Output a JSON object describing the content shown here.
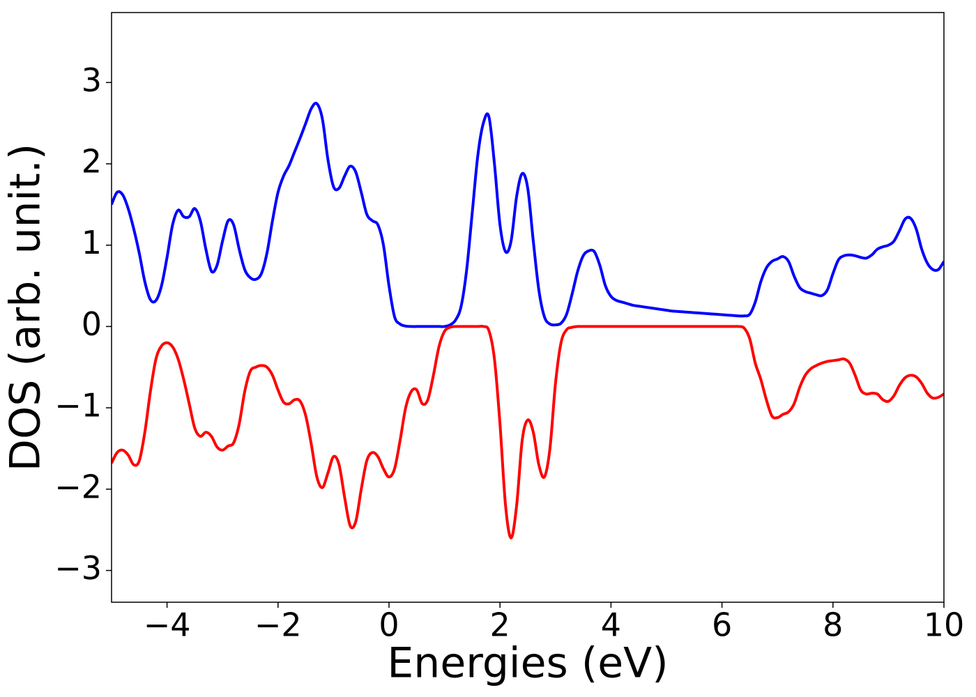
{
  "chart_data": {
    "type": "line",
    "xlabel": "Energies (eV)",
    "ylabel": "DOS (arb. unit.)",
    "x": [
      -5,
      -4.9,
      -4.8,
      -4.7,
      -4.6,
      -4.5,
      -4.4,
      -4.3,
      -4.2,
      -4.1,
      -4,
      -3.9,
      -3.8,
      -3.7,
      -3.6,
      -3.5,
      -3.4,
      -3.3,
      -3.2,
      -3.1,
      -3,
      -2.9,
      -2.8,
      -2.7,
      -2.6,
      -2.5,
      -2.4,
      -2.3,
      -2.2,
      -2.1,
      -2,
      -1.9,
      -1.8,
      -1.7,
      -1.6,
      -1.5,
      -1.4,
      -1.3,
      -1.2,
      -1.1,
      -1,
      -0.9,
      -0.8,
      -0.7,
      -0.6,
      -0.5,
      -0.4,
      -0.3,
      -0.2,
      -0.1,
      0,
      0.1,
      0.2,
      0.3,
      0.4,
      0.5,
      0.6,
      0.7,
      0.8,
      0.9,
      1,
      1.1,
      1.2,
      1.3,
      1.4,
      1.5,
      1.6,
      1.7,
      1.8,
      1.9,
      2,
      2.1,
      2.2,
      2.3,
      2.4,
      2.5,
      2.6,
      2.7,
      2.8,
      2.9,
      3,
      3.1,
      3.2,
      3.3,
      3.4,
      3.5,
      3.6,
      3.7,
      3.8,
      3.9,
      4,
      4.1,
      4.2,
      4.3,
      4.4,
      4.5,
      4.6,
      4.7,
      4.8,
      4.9,
      5,
      5.1,
      5.2,
      5.3,
      5.4,
      5.5,
      5.6,
      5.7,
      5.8,
      5.9,
      6,
      6.1,
      6.2,
      6.3,
      6.4,
      6.5,
      6.6,
      6.7,
      6.8,
      6.9,
      7,
      7.1,
      7.2,
      7.3,
      7.4,
      7.5,
      7.6,
      7.7,
      7.8,
      7.9,
      8,
      8.1,
      8.2,
      8.3,
      8.4,
      8.5,
      8.6,
      8.7,
      8.8,
      8.9,
      9,
      9.1,
      9.2,
      9.3,
      9.4,
      9.5,
      9.6,
      9.7,
      9.8,
      9.9,
      10
    ],
    "series": [
      {
        "color": "#0000ff",
        "values": [
          1.5,
          1.65,
          1.62,
          1.45,
          1.2,
          0.9,
          0.55,
          0.33,
          0.32,
          0.5,
          0.85,
          1.25,
          1.43,
          1.35,
          1.35,
          1.45,
          1.3,
          0.95,
          0.68,
          0.75,
          1.05,
          1.3,
          1.25,
          0.95,
          0.7,
          0.6,
          0.58,
          0.65,
          0.9,
          1.3,
          1.65,
          1.85,
          1.98,
          2.15,
          2.32,
          2.5,
          2.68,
          2.74,
          2.55,
          2.05,
          1.72,
          1.7,
          1.85,
          1.97,
          1.9,
          1.65,
          1.38,
          1.3,
          1.25,
          1.0,
          0.5,
          0.12,
          0.03,
          0.005,
          0,
          0,
          0,
          0,
          0,
          0,
          0,
          0.02,
          0.08,
          0.25,
          0.7,
          1.4,
          2.1,
          2.5,
          2.58,
          2.0,
          1.25,
          0.92,
          1.05,
          1.6,
          1.88,
          1.7,
          1.05,
          0.45,
          0.12,
          0.03,
          0.02,
          0.04,
          0.15,
          0.4,
          0.68,
          0.87,
          0.93,
          0.92,
          0.75,
          0.5,
          0.37,
          0.32,
          0.3,
          0.28,
          0.26,
          0.25,
          0.24,
          0.23,
          0.22,
          0.21,
          0.2,
          0.19,
          0.185,
          0.18,
          0.175,
          0.17,
          0.165,
          0.16,
          0.155,
          0.15,
          0.145,
          0.14,
          0.135,
          0.13,
          0.13,
          0.15,
          0.3,
          0.55,
          0.72,
          0.8,
          0.83,
          0.86,
          0.8,
          0.62,
          0.48,
          0.43,
          0.41,
          0.39,
          0.38,
          0.45,
          0.65,
          0.82,
          0.87,
          0.88,
          0.87,
          0.85,
          0.84,
          0.88,
          0.95,
          0.98,
          1.0,
          1.05,
          1.18,
          1.32,
          1.33,
          1.2,
          0.95,
          0.78,
          0.7,
          0.7,
          0.8
        ]
      },
      {
        "color": "#ff0000",
        "values": [
          -1.68,
          -1.55,
          -1.52,
          -1.58,
          -1.7,
          -1.65,
          -1.3,
          -0.8,
          -0.4,
          -0.24,
          -0.2,
          -0.25,
          -0.4,
          -0.65,
          -0.95,
          -1.25,
          -1.35,
          -1.3,
          -1.35,
          -1.48,
          -1.52,
          -1.47,
          -1.43,
          -1.2,
          -0.8,
          -0.55,
          -0.5,
          -0.48,
          -0.5,
          -0.6,
          -0.78,
          -0.93,
          -0.95,
          -0.9,
          -0.92,
          -1.1,
          -1.45,
          -1.85,
          -1.98,
          -1.8,
          -1.6,
          -1.7,
          -2.1,
          -2.45,
          -2.4,
          -2.0,
          -1.65,
          -1.55,
          -1.6,
          -1.75,
          -1.85,
          -1.75,
          -1.4,
          -1.0,
          -0.8,
          -0.78,
          -0.95,
          -0.9,
          -0.6,
          -0.25,
          -0.06,
          -0.01,
          0,
          0,
          0,
          0,
          0,
          0,
          -0.05,
          -0.4,
          -1.2,
          -2.2,
          -2.6,
          -2.2,
          -1.4,
          -1.15,
          -1.3,
          -1.7,
          -1.85,
          -1.5,
          -0.7,
          -0.2,
          -0.04,
          -0.01,
          0,
          0,
          0,
          0,
          0,
          0,
          0,
          0,
          0,
          0,
          0,
          0,
          0,
          0,
          0,
          0,
          0,
          0,
          0,
          0,
          0,
          0,
          0,
          0,
          0,
          0,
          0,
          0,
          0,
          0,
          -0.02,
          -0.15,
          -0.45,
          -0.65,
          -0.9,
          -1.1,
          -1.12,
          -1.08,
          -1.05,
          -0.95,
          -0.75,
          -0.6,
          -0.52,
          -0.48,
          -0.45,
          -0.43,
          -0.42,
          -0.41,
          -0.4,
          -0.45,
          -0.6,
          -0.78,
          -0.83,
          -0.82,
          -0.83,
          -0.9,
          -0.92,
          -0.85,
          -0.72,
          -0.63,
          -0.6,
          -0.62,
          -0.7,
          -0.82,
          -0.88,
          -0.87,
          -0.83
        ]
      }
    ],
    "xlim": [
      -5,
      10
    ],
    "xticks": [
      {
        "value": -4,
        "label": "−4"
      },
      {
        "value": -2,
        "label": "−2"
      },
      0,
      2,
      4,
      6,
      8,
      10
    ],
    "ylim": [
      -3.39,
      3.86
    ],
    "yticks": [
      {
        "value": -3,
        "label": "−3"
      },
      {
        "value": -2,
        "label": "−2"
      },
      {
        "value": -1,
        "label": "−1"
      },
      0,
      1,
      2,
      3
    ],
    "grid": false
  }
}
